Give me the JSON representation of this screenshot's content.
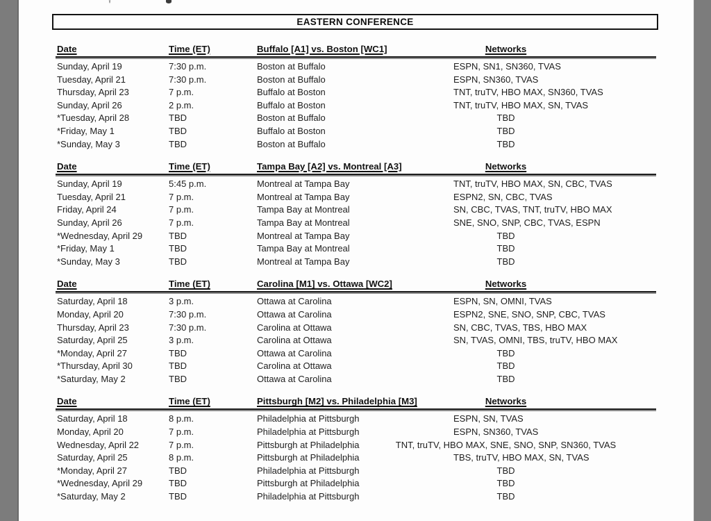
{
  "page": {
    "conference_title": "EASTERN CONFERENCE"
  },
  "columns": {
    "date": "Date",
    "time": "Time (ET)",
    "networks": "Networks"
  },
  "series": [
    {
      "matchup": "Buffalo [A1] vs. Boston [WC1]",
      "rows": [
        {
          "date": "Sunday, April 19",
          "time": "7:30 p.m.",
          "game": "Boston at Buffalo",
          "networks": "ESPN, SN1, SN360, TVAS"
        },
        {
          "date": "Tuesday, April 21",
          "time": "7:30 p.m.",
          "game": "Boston at Buffalo",
          "networks": "ESPN, SN360, TVAS"
        },
        {
          "date": "Thursday, April 23",
          "time": "7 p.m.",
          "game": "Buffalo at Boston",
          "networks": "TNT, truTV, HBO MAX, SN360, TVAS"
        },
        {
          "date": "Sunday, April 26",
          "time": "2 p.m.",
          "game": "Buffalo at Boston",
          "networks": "TNT, truTV, HBO MAX, SN, TVAS"
        },
        {
          "date": "*Tuesday, April 28",
          "time": "TBD",
          "game": "Boston at Buffalo",
          "networks": "TBD"
        },
        {
          "date": "*Friday, May 1",
          "time": "TBD",
          "game": "Buffalo at Boston",
          "networks": "TBD"
        },
        {
          "date": "*Sunday, May 3",
          "time": "TBD",
          "game": "Boston at Buffalo",
          "networks": "TBD"
        }
      ]
    },
    {
      "matchup": "Tampa Bay [A2] vs. Montreal [A3]",
      "rows": [
        {
          "date": "Sunday, April 19",
          "time": "5:45 p.m.",
          "game": "Montreal at Tampa Bay",
          "networks": "TNT, truTV, HBO MAX, SN, CBC, TVAS"
        },
        {
          "date": "Tuesday, April 21",
          "time": "7 p.m.",
          "game": "Montreal at Tampa Bay",
          "networks": "ESPN2, SN, CBC, TVAS"
        },
        {
          "date": "Friday, April 24",
          "time": "7 p.m.",
          "game": "Tampa Bay at Montreal",
          "networks": "SN, CBC, TVAS, TNT, truTV, HBO MAX"
        },
        {
          "date": "Sunday, April 26",
          "time": "7 p.m.",
          "game": "Tampa Bay at Montreal",
          "networks": "SNE, SNO, SNP, CBC, TVAS, ESPN"
        },
        {
          "date": "*Wednesday, April 29",
          "time": "TBD",
          "game": "Montreal at Tampa Bay",
          "networks": "TBD"
        },
        {
          "date": "*Friday, May 1",
          "time": "TBD",
          "game": "Tampa Bay at Montreal",
          "networks": "TBD"
        },
        {
          "date": "*Sunday, May 3",
          "time": "TBD",
          "game": "Montreal at Tampa Bay",
          "networks": "TBD"
        }
      ]
    },
    {
      "matchup": "Carolina [M1] vs. Ottawa [WC2]",
      "rows": [
        {
          "date": "Saturday, April 18",
          "time": "3 p.m.",
          "game": "Ottawa at Carolina",
          "networks": "ESPN, SN, OMNI, TVAS"
        },
        {
          "date": "Monday, April 20",
          "time": "7:30 p.m.",
          "game": "Ottawa at Carolina",
          "networks": "ESPN2, SNE, SNO, SNP, CBC, TVAS"
        },
        {
          "date": "Thursday, April 23",
          "time": "7:30 p.m.",
          "game": "Carolina at Ottawa",
          "networks": "SN, CBC, TVAS, TBS, HBO MAX"
        },
        {
          "date": "Saturday, April 25",
          "time": "3 p.m.",
          "game": "Carolina at Ottawa",
          "networks": "SN, TVAS, OMNI, TBS, truTV, HBO MAX"
        },
        {
          "date": "*Monday, April 27",
          "time": "TBD",
          "game": "Ottawa at Carolina",
          "networks": "TBD"
        },
        {
          "date": "*Thursday, April 30",
          "time": "TBD",
          "game": "Carolina at Ottawa",
          "networks": "TBD"
        },
        {
          "date": "*Saturday, May 2",
          "time": "TBD",
          "game": "Ottawa at Carolina",
          "networks": "TBD"
        }
      ]
    },
    {
      "matchup": "Pittsburgh [M2] vs. Philadelphia [M3]",
      "rows": [
        {
          "date": "Saturday, April 18",
          "time": "8 p.m.",
          "game": "Philadelphia at Pittsburgh",
          "networks": "ESPN, SN, TVAS"
        },
        {
          "date": "Monday, April 20",
          "time": "7 p.m.",
          "game": "Philadelphia at Pittsburgh",
          "networks": "ESPN, SN360, TVAS"
        },
        {
          "date": "Wednesday, April 22",
          "time": "7 p.m.",
          "game": "Pittsburgh at Philadelphia",
          "networks": "TNT, truTV, HBO MAX, SNE, SNO, SNP, SN360, TVAS"
        },
        {
          "date": "Saturday, April 25",
          "time": "8 p.m.",
          "game": "Pittsburgh at Philadelphia",
          "networks": "TBS, truTV, HBO MAX, SN, TVAS"
        },
        {
          "date": "*Monday, April 27",
          "time": "TBD",
          "game": "Philadelphia at Pittsburgh",
          "networks": "TBD"
        },
        {
          "date": "*Wednesday, April 29",
          "time": "TBD",
          "game": "Pittsburgh at Philadelphia",
          "networks": "TBD"
        },
        {
          "date": "*Saturday, May 2",
          "time": "TBD",
          "game": "Philadelphia at Pittsburgh",
          "networks": "TBD"
        }
      ]
    }
  ]
}
